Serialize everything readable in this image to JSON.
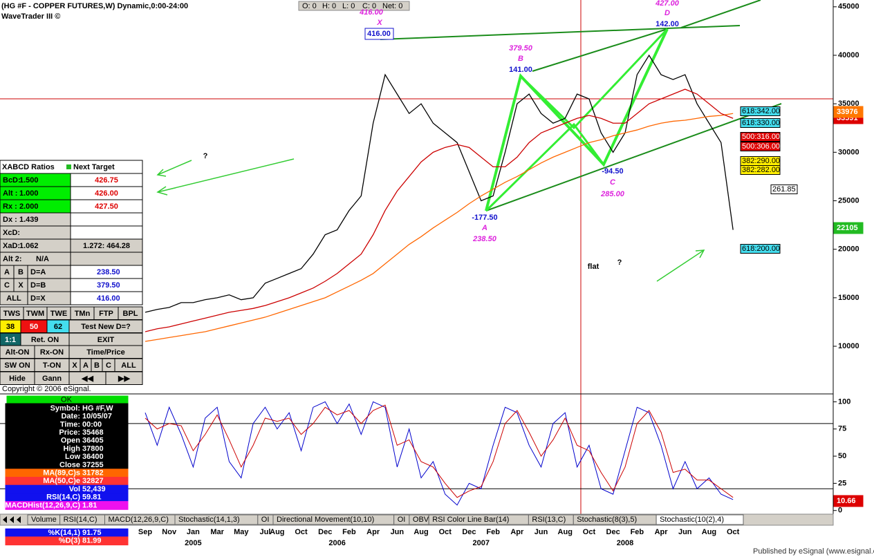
{
  "header": {
    "title": "(HG #F - COPPER FUTURES,W) Dynamic,0:00-24:00",
    "subtitle": "WaveTrader III ©",
    "status": [
      "O: 0",
      "H: 0",
      "L: 0",
      "C: 0",
      "Net: 0"
    ]
  },
  "chart_data": [
    {
      "type": "line",
      "categories": [
        "Sep",
        null,
        "Nov",
        null,
        "Jan",
        null,
        "Mar",
        null,
        "May",
        null,
        "Jul",
        "Aug",
        null,
        "Oct",
        null,
        "Dec",
        null,
        "Feb",
        null,
        "Apr",
        null,
        "Jun",
        null,
        "Aug",
        null,
        "Oct",
        null,
        "Dec",
        null,
        "Feb",
        null,
        "Apr",
        null,
        "Jun",
        null,
        "Aug",
        null,
        "Oct",
        null,
        "Dec",
        null,
        "Feb",
        null,
        "Apr",
        null,
        "Jun",
        null,
        "Aug",
        null,
        "Oct"
      ],
      "years": [
        "2005",
        "2006",
        "2007",
        "2008"
      ],
      "ylim": [
        5300,
        45700
      ],
      "yticks": [
        10000,
        15000,
        20000,
        25000,
        30000,
        35000,
        40000,
        45000
      ],
      "series": [
        {
          "name": "Close",
          "color": "#000000",
          "values": [
            13500,
            13800,
            14000,
            14500,
            14500,
            14800,
            15000,
            15300,
            14800,
            15000,
            16500,
            17000,
            17500,
            18000,
            19500,
            21500,
            22000,
            24000,
            25500,
            33000,
            38000,
            36000,
            34000,
            35000,
            33000,
            32000,
            31000,
            28000,
            25000,
            25500,
            30000,
            35000,
            36000,
            34000,
            33000,
            33500,
            36000,
            35500,
            32000,
            30000,
            32000,
            38000,
            40000,
            38000,
            37500,
            38000,
            35000,
            33000,
            31000,
            22000
          ]
        },
        {
          "name": "MA(89,C)s",
          "color": "#ff6600",
          "values": [
            10500,
            10700,
            10900,
            11100,
            11300,
            11500,
            11800,
            12100,
            12400,
            12700,
            13000,
            13400,
            13800,
            14200,
            14600,
            15000,
            15600,
            16200,
            16800,
            17500,
            18500,
            19500,
            20500,
            21300,
            22200,
            23000,
            23800,
            24700,
            25500,
            26200,
            26900,
            27500,
            28200,
            28900,
            29500,
            30000,
            30500,
            31000,
            31300,
            31700,
            32000,
            32300,
            32700,
            33000,
            33200,
            33300,
            33500,
            33700,
            33800,
            34000
          ]
        },
        {
          "name": "MA(50,C)e",
          "color": "#cc0000",
          "values": [
            11500,
            11800,
            12000,
            12300,
            12600,
            12900,
            13200,
            13500,
            13700,
            13900,
            14200,
            14600,
            15000,
            15500,
            16000,
            16700,
            17500,
            18500,
            19500,
            21500,
            24000,
            26000,
            27500,
            29000,
            30000,
            30500,
            30800,
            30500,
            29500,
            28500,
            28500,
            29500,
            31000,
            32000,
            32500,
            33000,
            33500,
            33800,
            33500,
            33000,
            33000,
            34000,
            35000,
            35500,
            36000,
            36500,
            36000,
            35000,
            34000,
            33500
          ]
        }
      ]
    },
    {
      "type": "line",
      "ylim": [
        -4,
        106
      ],
      "yticks": [
        0,
        25,
        50,
        75,
        100
      ],
      "levels": [
        20,
        80
      ],
      "series": [
        {
          "name": "%K(14,1)",
          "color": "#0000cc",
          "values": [
            90,
            60,
            95,
            70,
            40,
            85,
            95,
            45,
            30,
            80,
            95,
            75,
            90,
            55,
            95,
            100,
            80,
            98,
            70,
            100,
            95,
            40,
            75,
            30,
            45,
            15,
            5,
            25,
            20,
            60,
            95,
            90,
            60,
            40,
            80,
            90,
            40,
            60,
            20,
            15,
            55,
            95,
            90,
            60,
            20,
            45,
            20,
            30,
            15,
            10
          ]
        },
        {
          "name": "%D(3)",
          "color": "#cc0000",
          "values": [
            85,
            75,
            80,
            78,
            55,
            70,
            88,
            65,
            40,
            60,
            85,
            82,
            85,
            70,
            80,
            95,
            88,
            92,
            80,
            92,
            97,
            60,
            65,
            45,
            40,
            25,
            12,
            18,
            22,
            45,
            80,
            92,
            72,
            50,
            65,
            85,
            60,
            55,
            35,
            18,
            40,
            80,
            92,
            72,
            35,
            38,
            28,
            28,
            20,
            12
          ]
        }
      ]
    }
  ],
  "pattern": [
    "416.00",
    "X",
    "416.00",
    "379.50",
    "B",
    "141.00",
    "427.00",
    "D",
    "142.00",
    "-94.50",
    "C",
    "285.00",
    "-177.50",
    "A",
    "238.50"
  ],
  "fib_levels": [
    "618:342.00",
    "618:330.00",
    "500:316.00",
    "500:306.00",
    "382:290.00",
    "382:282.00",
    "261.85",
    "618:200.00"
  ],
  "price_flags": [
    "33591",
    "33976",
    "22105"
  ],
  "stoch_flag": "10.66",
  "notes": [
    "flat",
    "?",
    "?"
  ],
  "xabcd": {
    "header": [
      "XABCD Ratios",
      "Next Target"
    ],
    "rows": [
      [
        "BcD:",
        "1.500",
        "426.75"
      ],
      [
        "Alt :",
        "1.000",
        "426.00"
      ],
      [
        "Rx :",
        "2.000",
        "427.50"
      ],
      [
        "Dx :",
        "1.439"
      ],
      [
        "XcD:"
      ],
      [
        "XaD:",
        "1.062",
        "1.272: 464.28"
      ],
      [
        "Alt 2:",
        "N/A"
      ]
    ],
    "targets": [
      [
        "A",
        "B",
        "D=A",
        "238.50"
      ],
      [
        "C",
        "X",
        "D=B",
        "379.50"
      ],
      [
        "ALL",
        "D=X",
        "416.00"
      ]
    ]
  },
  "buttons": [
    [
      "TWS",
      "TWM",
      "TWE",
      "TMn",
      "FTP",
      "BPL"
    ],
    [
      "38",
      "50",
      "62",
      "Test New D=?"
    ],
    [
      "1:1",
      "Ret. ON",
      "EXIT"
    ],
    [
      "Alt-ON",
      "Rx-ON",
      "Time/Price"
    ],
    [
      "SW ON",
      "T-ON",
      "X",
      "A",
      "B",
      "C",
      "ALL"
    ],
    [
      "Hide",
      "Gann",
      "◀◀",
      "▶▶"
    ]
  ],
  "copyright": "Copyright © 2006 eSignal.",
  "data_window": {
    "status": "OK",
    "rows": [
      [
        "Symbol:",
        "HG #F,W"
      ],
      [
        "Date:",
        "10/05/07"
      ],
      [
        "Time:",
        "00:00"
      ],
      [
        "Price:",
        "35468"
      ],
      [
        "Open",
        "36405"
      ],
      [
        "High",
        "37800"
      ],
      [
        "Low",
        "36400"
      ]
    ],
    "series_values": [
      "37255",
      "31782",
      "32827"
    ],
    "studies": [
      [
        "Vol",
        "52,439"
      ],
      [
        "RSI(14,C)",
        "59.81"
      ],
      [
        "MACDHist(12,26,9,C)",
        "1.81"
      ]
    ],
    "stoch_values": [
      "91.75",
      "81.99"
    ]
  },
  "tabs": [
    "Volume",
    "RSI(14,C)",
    "MACD(12,26,9,C)",
    "Stochastic(14,1,3)",
    "OI",
    "Directional Movement(10,10)",
    "OI",
    "OBV",
    "RSI Color Line Bar(14)",
    "RSI(13,C)",
    "Stochastic(8(3),5)",
    "Stochastic(10(2),4)"
  ],
  "footer": "Published by eSignal (www.esignal.com)"
}
